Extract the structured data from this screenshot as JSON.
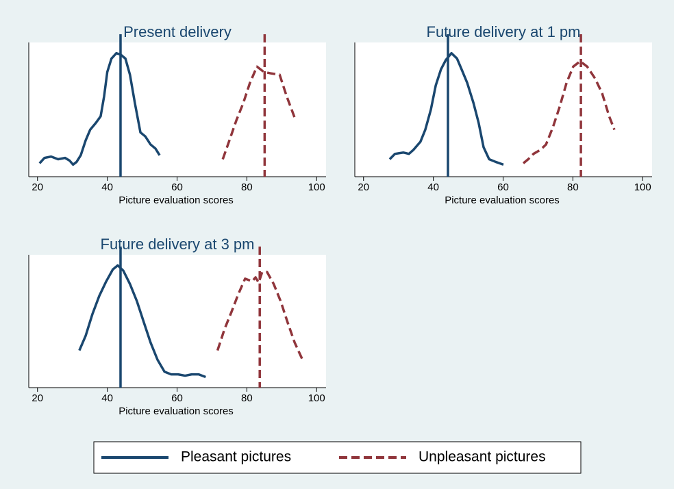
{
  "chart_data": [
    {
      "type": "line",
      "title": "Present delivery",
      "x_label": "Picture evaluation scores",
      "xlim": [
        17.5,
        102.7
      ],
      "xticks": [
        20,
        40,
        60,
        80,
        100
      ],
      "ylim": [
        0,
        1
      ],
      "series": [
        {
          "name": "Pleasant pictures",
          "color": "#1a476f",
          "line_style": "solid",
          "mean": 43.8,
          "x": [
            20.6,
            22.0,
            23.9,
            25.9,
            27.9,
            29.2,
            30.2,
            31.2,
            32.4,
            33.8,
            35.1,
            36.7,
            38.1,
            39.1,
            40.0,
            41.2,
            42.6,
            43.8,
            45.2,
            46.5,
            47.9,
            49.5,
            50.9,
            52.4,
            53.8,
            55.0
          ],
          "values": [
            0.1,
            0.14,
            0.15,
            0.13,
            0.14,
            0.12,
            0.09,
            0.11,
            0.16,
            0.27,
            0.35,
            0.4,
            0.45,
            0.6,
            0.78,
            0.88,
            0.92,
            0.91,
            0.88,
            0.76,
            0.55,
            0.33,
            0.3,
            0.24,
            0.21,
            0.16
          ]
        },
        {
          "name": "Unpleasant pictures",
          "color": "#90353b",
          "line_style": "dashed",
          "mean": 85.1,
          "x": [
            73.1,
            75.0,
            77.0,
            79.0,
            80.9,
            82.9,
            84.9,
            86.8,
            89.4,
            91.4,
            93.7
          ],
          "values": [
            0.13,
            0.27,
            0.42,
            0.55,
            0.7,
            0.82,
            0.78,
            0.77,
            0.76,
            0.6,
            0.44
          ]
        }
      ]
    },
    {
      "type": "line",
      "title": "Future delivery at 1 pm",
      "x_label": "Picture evaluation scores",
      "xlim": [
        17.5,
        102.7
      ],
      "xticks": [
        20,
        40,
        60,
        80,
        100
      ],
      "ylim": [
        0,
        1
      ],
      "series": [
        {
          "name": "Pleasant pictures",
          "color": "#1a476f",
          "line_style": "solid",
          "mean": 44.2,
          "x": [
            27.5,
            29.0,
            31.4,
            33.0,
            34.3,
            36.3,
            37.7,
            39.3,
            40.7,
            42.2,
            43.6,
            45.2,
            46.8,
            48.1,
            49.7,
            51.5,
            53.0,
            54.4,
            56.0,
            57.9,
            60.1
          ],
          "values": [
            0.13,
            0.17,
            0.18,
            0.17,
            0.2,
            0.26,
            0.35,
            0.5,
            0.68,
            0.8,
            0.87,
            0.92,
            0.88,
            0.8,
            0.7,
            0.55,
            0.4,
            0.22,
            0.13,
            0.11,
            0.09
          ]
        },
        {
          "name": "Unpleasant pictures",
          "color": "#90353b",
          "line_style": "dashed",
          "mean": 82.3,
          "x": [
            65.8,
            67.2,
            68.7,
            70.7,
            72.3,
            74.3,
            76.2,
            78.2,
            80.1,
            82.1,
            84.1,
            86.4,
            88.4,
            90.4,
            91.9
          ],
          "values": [
            0.1,
            0.13,
            0.17,
            0.2,
            0.24,
            0.37,
            0.52,
            0.7,
            0.82,
            0.86,
            0.82,
            0.73,
            0.62,
            0.45,
            0.35
          ]
        }
      ]
    },
    {
      "type": "line",
      "title": "Future delivery at 3 pm",
      "x_label": "Picture evaluation scores",
      "xlim": [
        17.5,
        102.7
      ],
      "xticks": [
        20,
        40,
        60,
        80,
        100
      ],
      "ylim": [
        0,
        1
      ],
      "series": [
        {
          "name": "Pleasant pictures",
          "color": "#1a476f",
          "line_style": "solid",
          "mean": 43.8,
          "x": [
            32.0,
            33.8,
            35.7,
            37.7,
            39.7,
            41.6,
            43.0,
            44.6,
            46.5,
            48.5,
            50.5,
            52.4,
            54.4,
            56.4,
            58.3,
            60.3,
            62.3,
            64.2,
            66.2,
            68.2
          ],
          "values": [
            0.28,
            0.39,
            0.55,
            0.69,
            0.8,
            0.89,
            0.92,
            0.88,
            0.78,
            0.65,
            0.49,
            0.34,
            0.21,
            0.12,
            0.1,
            0.1,
            0.09,
            0.1,
            0.1,
            0.08
          ]
        },
        {
          "name": "Unpleasant pictures",
          "color": "#90353b",
          "line_style": "dashed",
          "mean": 83.7,
          "x": [
            71.6,
            73.6,
            75.6,
            77.5,
            79.5,
            81.5,
            82.5,
            83.4,
            84.4,
            85.8,
            87.7,
            89.7,
            91.7,
            93.7,
            96.3
          ],
          "values": [
            0.28,
            0.44,
            0.57,
            0.7,
            0.82,
            0.8,
            0.83,
            0.79,
            0.87,
            0.87,
            0.78,
            0.65,
            0.49,
            0.34,
            0.19
          ]
        }
      ]
    }
  ]
}
